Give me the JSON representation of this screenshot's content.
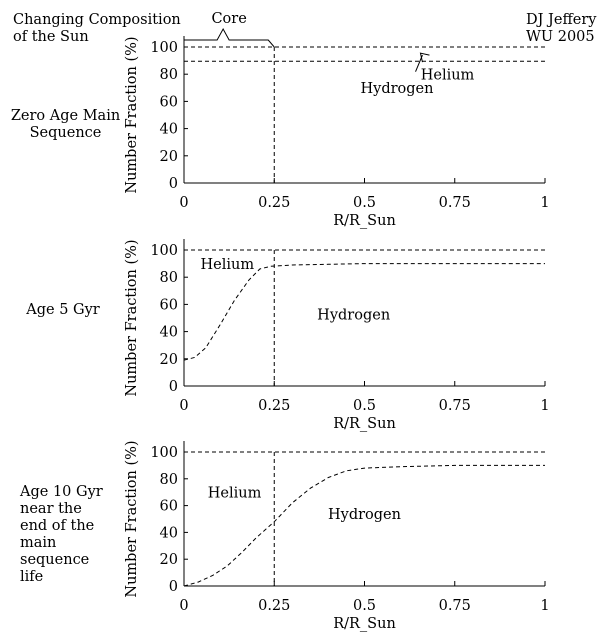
{
  "title": "Changing Composition of the Sun",
  "credit": "DJ Jeffery WU 2005",
  "core_label": "Core",
  "chart_data": [
    {
      "type": "line",
      "label": "Zero Age Main Sequence",
      "xlabel": "R/R_Sun",
      "ylabel": "Number Fraction (%)",
      "xlim": [
        0,
        1
      ],
      "ylim": [
        0,
        100
      ],
      "xticks": [
        0,
        0.25,
        0.5,
        0.75,
        1
      ],
      "xtick_labels": [
        "0",
        "0.25",
        "0.5",
        "0.75",
        "1"
      ],
      "yticks": [
        0,
        20,
        40,
        60,
        80,
        100
      ],
      "core_radius": 0.25,
      "region_labels": [
        {
          "text": "Hydrogen",
          "x": 0.59,
          "y": 66
        },
        {
          "text": "Helium",
          "x": 0.73,
          "y": 76
        }
      ],
      "series": [
        {
          "x": [
            0,
            1
          ],
          "y": [
            100,
            100
          ]
        },
        {
          "x": [
            0,
            1
          ],
          "y": [
            89.5,
            89.5
          ]
        }
      ]
    },
    {
      "type": "line",
      "label": "Age 5 Gyr",
      "xlabel": "R/R_Sun",
      "ylabel": "Number Fraction (%)",
      "xlim": [
        0,
        1
      ],
      "ylim": [
        0,
        100
      ],
      "xticks": [
        0,
        0.25,
        0.5,
        0.75,
        1
      ],
      "xtick_labels": [
        "0",
        "0.25",
        "0.5",
        "0.75",
        "1"
      ],
      "yticks": [
        0,
        20,
        40,
        60,
        80,
        100
      ],
      "core_radius": 0.25,
      "region_labels": [
        {
          "text": "Helium",
          "x": 0.12,
          "y": 86
        },
        {
          "text": "Hydrogen",
          "x": 0.47,
          "y": 49
        }
      ],
      "series": [
        {
          "x": [
            0,
            1
          ],
          "y": [
            100,
            100
          ]
        },
        {
          "x": [
            0,
            0.03,
            0.06,
            0.1,
            0.14,
            0.18,
            0.21,
            0.24,
            0.3,
            0.4,
            0.5,
            0.6,
            0.75,
            1
          ],
          "y": [
            19,
            21,
            28,
            45,
            63,
            78,
            86,
            88,
            89,
            89.5,
            90,
            90,
            90,
            90
          ]
        }
      ]
    },
    {
      "type": "line",
      "label": "Age 10 Gyr near the end of the main sequence life",
      "xlabel": "R/R_Sun",
      "ylabel": "Number Fraction (%)",
      "xlim": [
        0,
        1
      ],
      "ylim": [
        0,
        100
      ],
      "xticks": [
        0,
        0.25,
        0.5,
        0.75,
        1
      ],
      "xtick_labels": [
        "0",
        "0.25",
        "0.5",
        "0.75",
        "1"
      ],
      "yticks": [
        0,
        20,
        40,
        60,
        80,
        100
      ],
      "core_radius": 0.25,
      "region_labels": [
        {
          "text": "Helium",
          "x": 0.14,
          "y": 66
        },
        {
          "text": "Hydrogen",
          "x": 0.5,
          "y": 50
        }
      ],
      "series": [
        {
          "x": [
            0,
            1
          ],
          "y": [
            100,
            100
          ]
        },
        {
          "x": [
            0,
            0.04,
            0.08,
            0.12,
            0.16,
            0.2,
            0.25,
            0.3,
            0.35,
            0.4,
            0.45,
            0.5,
            0.6,
            0.75,
            1
          ],
          "y": [
            0,
            3,
            8,
            15,
            25,
            36,
            48,
            62,
            73,
            81,
            86,
            88,
            89,
            90,
            90
          ]
        }
      ]
    }
  ]
}
